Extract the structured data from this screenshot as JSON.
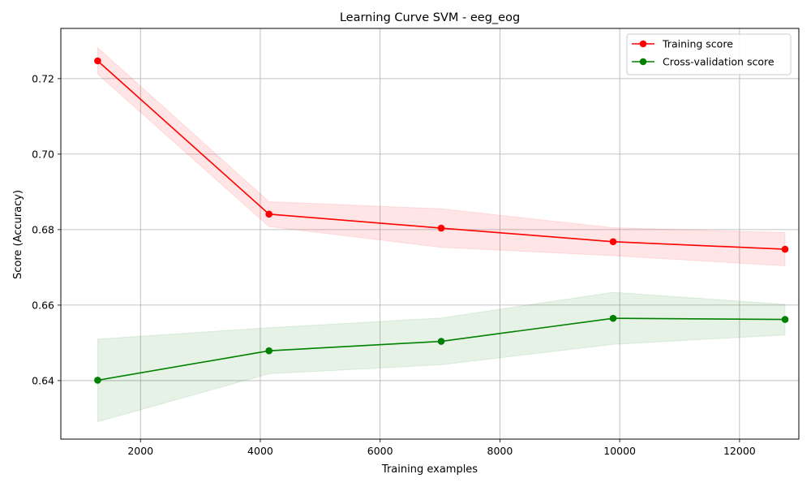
{
  "chart_data": {
    "type": "line",
    "title": "Learning Curve SVM - eeg_eog",
    "xlabel": "Training examples",
    "ylabel": "Score (Accuracy)",
    "xlim": [
      670,
      12990
    ],
    "ylim": [
      0.6245,
      0.7333
    ],
    "xticks": [
      2000,
      4000,
      6000,
      8000,
      10000,
      12000
    ],
    "yticks": [
      0.64,
      0.66,
      0.68,
      0.7,
      0.72
    ],
    "ytick_labels": [
      "0.64",
      "0.66",
      "0.68",
      "0.70",
      "0.72"
    ],
    "grid": true,
    "legend_position": "top-right",
    "x": [
      1285,
      4145,
      7020,
      9890,
      12760
    ],
    "series": [
      {
        "name": "Training score",
        "color": "#ff0000",
        "fill_color": "#ff0000",
        "values": [
          0.7247,
          0.6841,
          0.6804,
          0.6768,
          0.6748
        ],
        "band_lower": [
          0.7212,
          0.6808,
          0.6753,
          0.6731,
          0.6704
        ],
        "band_upper": [
          0.7282,
          0.6874,
          0.6855,
          0.6805,
          0.6792
        ]
      },
      {
        "name": "Cross-validation score",
        "color": "#008000",
        "fill_color": "#008000",
        "values": [
          0.6401,
          0.6479,
          0.6504,
          0.6565,
          0.6562
        ],
        "band_lower": [
          0.6291,
          0.6418,
          0.6442,
          0.6496,
          0.6521
        ],
        "band_upper": [
          0.651,
          0.654,
          0.6566,
          0.6634,
          0.6602
        ]
      }
    ]
  }
}
